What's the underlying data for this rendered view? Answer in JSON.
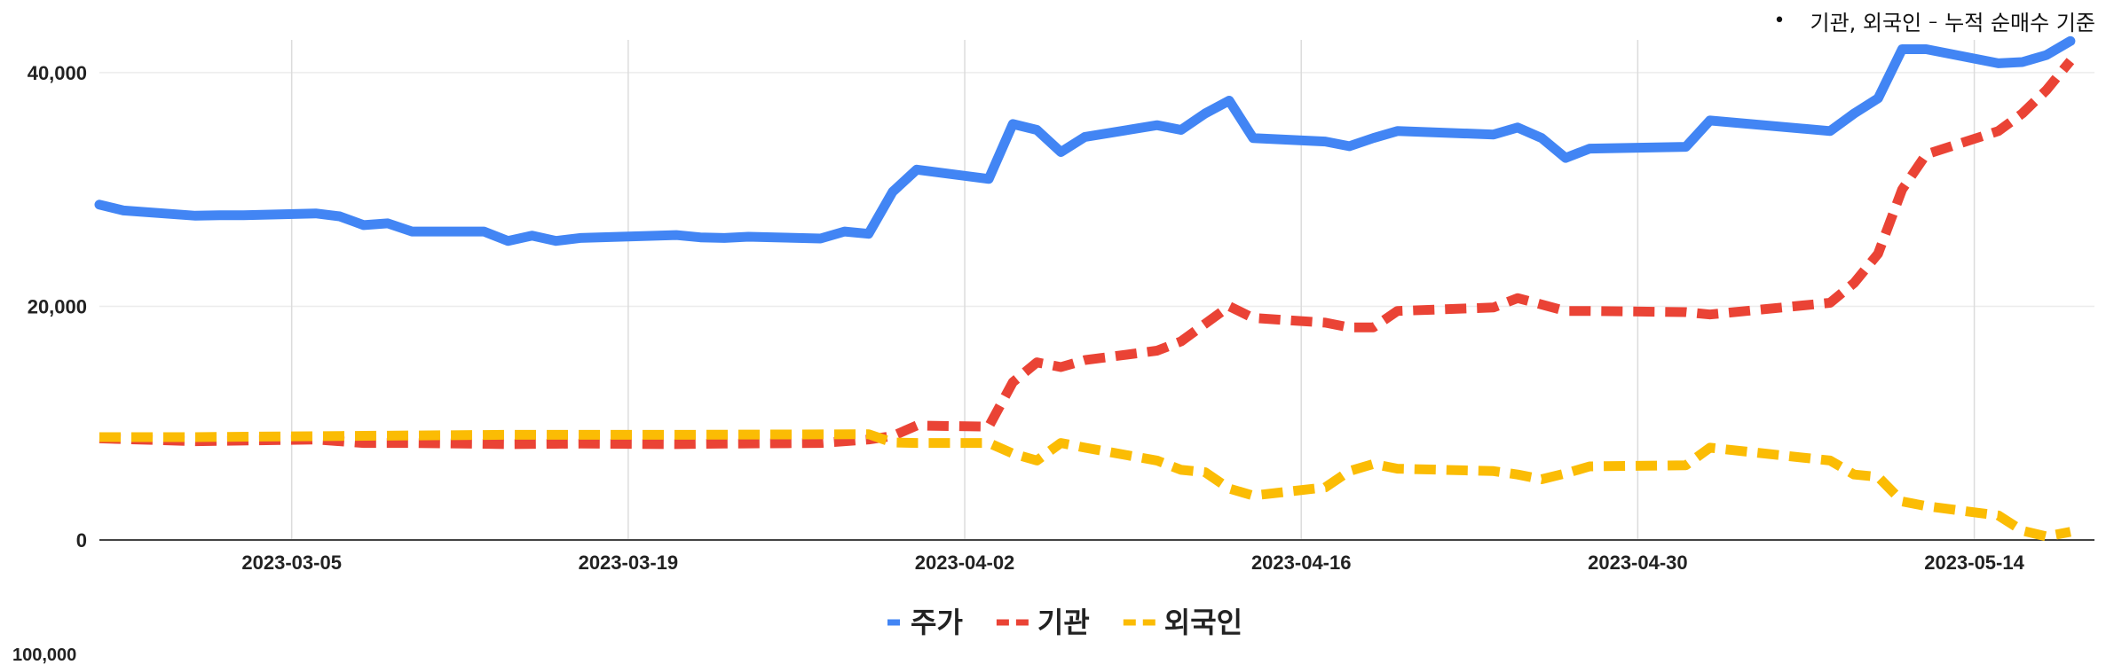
{
  "header_note": {
    "bullet": "•",
    "series_names": "기관, 외국인",
    "dash": "–",
    "basis": "누적 순매수 기준"
  },
  "next_chart_clipped_label": "100,000",
  "chart_data": {
    "type": "line",
    "title": "",
    "xlabel": "",
    "ylabel": "",
    "ylim": [
      0,
      42800
    ],
    "x_range": [
      "2023-02-25",
      "2023-05-19"
    ],
    "grid": true,
    "legend_position": "bottom",
    "y_ticks": [
      {
        "value": 0,
        "label": "0"
      },
      {
        "value": 20000,
        "label": "20,000"
      },
      {
        "value": 40000,
        "label": "40,000"
      }
    ],
    "x_ticks": [
      {
        "date": "2023-03-05",
        "label": "2023-03-05"
      },
      {
        "date": "2023-03-19",
        "label": "2023-03-19"
      },
      {
        "date": "2023-04-02",
        "label": "2023-04-02"
      },
      {
        "date": "2023-04-16",
        "label": "2023-04-16"
      },
      {
        "date": "2023-04-30",
        "label": "2023-04-30"
      },
      {
        "date": "2023-05-14",
        "label": "2023-05-14"
      }
    ],
    "series": [
      {
        "name": "주가",
        "color": "#4285f4",
        "dash": "solid",
        "points": [
          [
            "2023-02-25",
            28700
          ],
          [
            "2023-02-26",
            28200
          ],
          [
            "2023-03-01",
            27750
          ],
          [
            "2023-03-02",
            27800
          ],
          [
            "2023-03-03",
            27800
          ],
          [
            "2023-03-06",
            27950
          ],
          [
            "2023-03-07",
            27700
          ],
          [
            "2023-03-08",
            26950
          ],
          [
            "2023-03-09",
            27100
          ],
          [
            "2023-03-10",
            26400
          ],
          [
            "2023-03-13",
            26400
          ],
          [
            "2023-03-14",
            25600
          ],
          [
            "2023-03-15",
            26050
          ],
          [
            "2023-03-16",
            25600
          ],
          [
            "2023-03-17",
            25850
          ],
          [
            "2023-03-21",
            26100
          ],
          [
            "2023-03-22",
            25900
          ],
          [
            "2023-03-23",
            25850
          ],
          [
            "2023-03-24",
            25950
          ],
          [
            "2023-03-27",
            25800
          ],
          [
            "2023-03-28",
            26400
          ],
          [
            "2023-03-29",
            26200
          ],
          [
            "2023-03-30",
            29800
          ],
          [
            "2023-03-31",
            31700
          ],
          [
            "2023-04-03",
            30900
          ],
          [
            "2023-04-04",
            35600
          ],
          [
            "2023-04-05",
            35100
          ],
          [
            "2023-04-06",
            33200
          ],
          [
            "2023-04-07",
            34500
          ],
          [
            "2023-04-10",
            35500
          ],
          [
            "2023-04-11",
            35100
          ],
          [
            "2023-04-12",
            36500
          ],
          [
            "2023-04-13",
            37600
          ],
          [
            "2023-04-14",
            34400
          ],
          [
            "2023-04-17",
            34100
          ],
          [
            "2023-04-18",
            33700
          ],
          [
            "2023-04-19",
            34400
          ],
          [
            "2023-04-20",
            35000
          ],
          [
            "2023-04-24",
            34700
          ],
          [
            "2023-04-25",
            35300
          ],
          [
            "2023-04-26",
            34400
          ],
          [
            "2023-04-27",
            32700
          ],
          [
            "2023-04-28",
            33500
          ],
          [
            "2023-05-02",
            33650
          ],
          [
            "2023-05-03",
            35900
          ],
          [
            "2023-05-08",
            35000
          ],
          [
            "2023-05-09",
            36500
          ],
          [
            "2023-05-10",
            37800
          ],
          [
            "2023-05-11",
            42000
          ],
          [
            "2023-05-12",
            42000
          ],
          [
            "2023-05-15",
            40800
          ],
          [
            "2023-05-16",
            40900
          ],
          [
            "2023-05-17",
            41500
          ],
          [
            "2023-05-18",
            42700
          ]
        ]
      },
      {
        "name": "기관",
        "color": "#ea4335",
        "dash": "dashed",
        "points": [
          [
            "2023-02-25",
            8700
          ],
          [
            "2023-03-01",
            8450
          ],
          [
            "2023-03-06",
            8600
          ],
          [
            "2023-03-08",
            8300
          ],
          [
            "2023-03-10",
            8300
          ],
          [
            "2023-03-14",
            8200
          ],
          [
            "2023-03-17",
            8250
          ],
          [
            "2023-03-21",
            8200
          ],
          [
            "2023-03-23",
            8250
          ],
          [
            "2023-03-27",
            8300
          ],
          [
            "2023-03-29",
            8600
          ],
          [
            "2023-03-30",
            8900
          ],
          [
            "2023-03-31",
            9800
          ],
          [
            "2023-04-03",
            9700
          ],
          [
            "2023-04-04",
            13500
          ],
          [
            "2023-04-05",
            15200
          ],
          [
            "2023-04-06",
            14800
          ],
          [
            "2023-04-07",
            15400
          ],
          [
            "2023-04-10",
            16200
          ],
          [
            "2023-04-11",
            17000
          ],
          [
            "2023-04-12",
            18500
          ],
          [
            "2023-04-13",
            20000
          ],
          [
            "2023-04-14",
            19000
          ],
          [
            "2023-04-17",
            18600
          ],
          [
            "2023-04-18",
            18200
          ],
          [
            "2023-04-19",
            18200
          ],
          [
            "2023-04-20",
            19600
          ],
          [
            "2023-04-24",
            19900
          ],
          [
            "2023-04-25",
            20700
          ],
          [
            "2023-04-27",
            19600
          ],
          [
            "2023-04-28",
            19600
          ],
          [
            "2023-05-02",
            19500
          ],
          [
            "2023-05-03",
            19300
          ],
          [
            "2023-05-08",
            20300
          ],
          [
            "2023-05-09",
            22000
          ],
          [
            "2023-05-10",
            24500
          ],
          [
            "2023-05-11",
            30000
          ],
          [
            "2023-05-12",
            33000
          ],
          [
            "2023-05-15",
            35000
          ],
          [
            "2023-05-16",
            36500
          ],
          [
            "2023-05-17",
            38500
          ],
          [
            "2023-05-18",
            41000
          ]
        ]
      },
      {
        "name": "외국인",
        "color": "#fbbc04",
        "dash": "dashed",
        "points": [
          [
            "2023-02-25",
            8800
          ],
          [
            "2023-03-01",
            8800
          ],
          [
            "2023-03-07",
            8900
          ],
          [
            "2023-03-14",
            9000
          ],
          [
            "2023-03-21",
            9000
          ],
          [
            "2023-03-29",
            9050
          ],
          [
            "2023-03-30",
            8350
          ],
          [
            "2023-03-31",
            8300
          ],
          [
            "2023-04-03",
            8300
          ],
          [
            "2023-04-04",
            7400
          ],
          [
            "2023-04-05",
            6800
          ],
          [
            "2023-04-06",
            8300
          ],
          [
            "2023-04-07",
            7900
          ],
          [
            "2023-04-10",
            6800
          ],
          [
            "2023-04-11",
            6000
          ],
          [
            "2023-04-12",
            5800
          ],
          [
            "2023-04-13",
            4400
          ],
          [
            "2023-04-14",
            3800
          ],
          [
            "2023-04-17",
            4500
          ],
          [
            "2023-04-18",
            5900
          ],
          [
            "2023-04-19",
            6500
          ],
          [
            "2023-04-20",
            6100
          ],
          [
            "2023-04-24",
            5900
          ],
          [
            "2023-04-25",
            5600
          ],
          [
            "2023-04-26",
            5200
          ],
          [
            "2023-04-27",
            5700
          ],
          [
            "2023-04-28",
            6300
          ],
          [
            "2023-05-02",
            6400
          ],
          [
            "2023-05-03",
            7900
          ],
          [
            "2023-05-08",
            6800
          ],
          [
            "2023-05-09",
            5600
          ],
          [
            "2023-05-10",
            5400
          ],
          [
            "2023-05-11",
            3300
          ],
          [
            "2023-05-12",
            2900
          ],
          [
            "2023-05-15",
            2100
          ],
          [
            "2023-05-16",
            800
          ],
          [
            "2023-05-17",
            300
          ],
          [
            "2023-05-18",
            700
          ]
        ]
      }
    ]
  }
}
